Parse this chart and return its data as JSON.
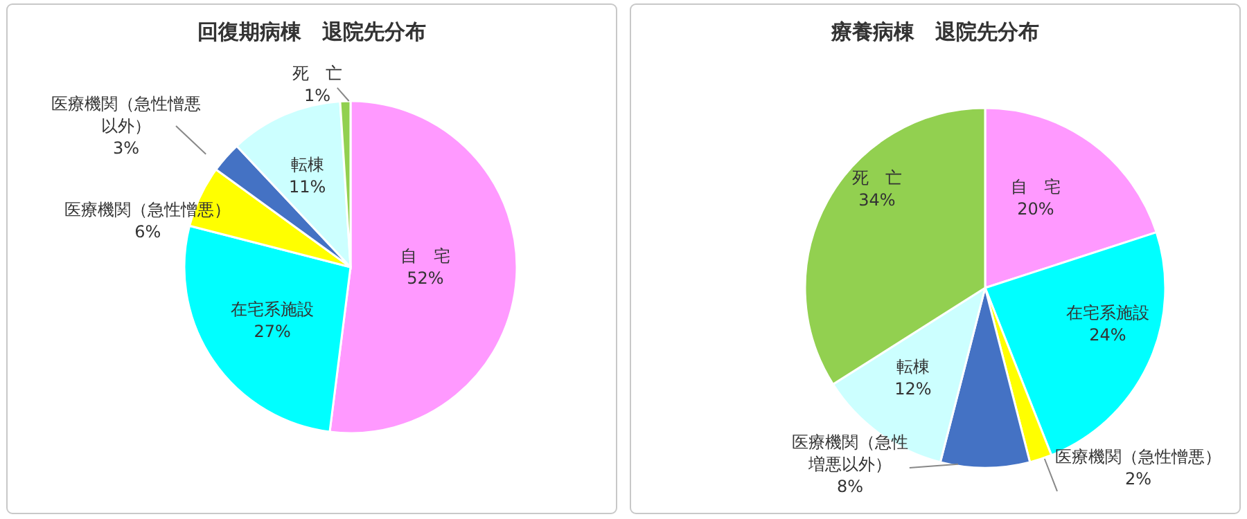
{
  "chart_data": [
    {
      "type": "pie",
      "title": "回復期病棟　退院先分布",
      "categories": [
        "自　宅",
        "在宅系施設",
        "医療機関（急性憎悪）",
        "医療機関（急性憎悪以外）",
        "転棟",
        "死　亡"
      ],
      "values": [
        52,
        27,
        6,
        3,
        11,
        1
      ],
      "colors": [
        "#ff99ff",
        "#00ffff",
        "#ffff00",
        "#4472c4",
        "#ccffff",
        "#92d050"
      ],
      "value_labels": [
        "52%",
        "27%",
        "6%",
        "3%",
        "11%",
        "1%"
      ]
    },
    {
      "type": "pie",
      "title": "療養病棟　退院先分布",
      "categories": [
        "自　宅",
        "在宅系施設",
        "医療機関（急性憎悪）",
        "医療機関（急性増悪以外）",
        "転棟",
        "死　亡"
      ],
      "values": [
        20,
        24,
        2,
        8,
        12,
        34
      ],
      "colors": [
        "#ff99ff",
        "#00ffff",
        "#ffff00",
        "#4472c4",
        "#ccffff",
        "#92d050"
      ],
      "value_labels": [
        "20%",
        "24%",
        "2%",
        "8%",
        "12%",
        "34%"
      ]
    }
  ]
}
